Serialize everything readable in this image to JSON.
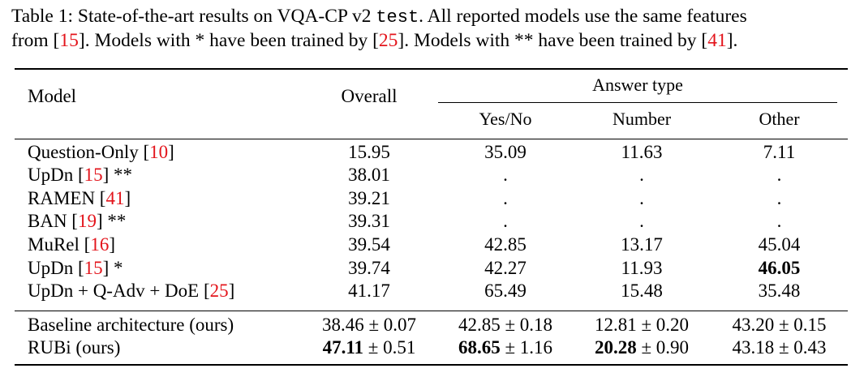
{
  "caption": {
    "line1_a": "Table 1: State-of-the-art results on VQA-CP v2 ",
    "line1_code": "test",
    "line1_b": ". All reported models use the same features",
    "line2_a": "from [",
    "line2_ref1": "15",
    "line2_b": "]. Models with * have been trained by [",
    "line2_ref2": "25",
    "line2_c": "]. Models with ** have been trained by [",
    "line2_ref3": "41",
    "line2_d": "]."
  },
  "header": {
    "model": "Model",
    "overall": "Overall",
    "answer_type": "Answer type",
    "yes_no": "Yes/No",
    "number": "Number",
    "other": "Other"
  },
  "rows": [
    {
      "name": "Question-Only [",
      "ref": "10",
      "suffix": "]",
      "overall": "15.95",
      "yes_no": "35.09",
      "number": "11.63",
      "other": "7.11"
    },
    {
      "name": "UpDn [",
      "ref": "15",
      "suffix": "] **",
      "overall": "38.01",
      "yes_no": ".",
      "number": ".",
      "other": "."
    },
    {
      "name": "RAMEN [",
      "ref": "41",
      "suffix": "]",
      "overall": "39.21",
      "yes_no": ".",
      "number": ".",
      "other": "."
    },
    {
      "name": "BAN [",
      "ref": "19",
      "suffix": "] **",
      "overall": "39.31",
      "yes_no": ".",
      "number": ".",
      "other": "."
    },
    {
      "name": "MuRel [",
      "ref": "16",
      "suffix": "]",
      "overall": "39.54",
      "yes_no": "42.85",
      "number": "13.17",
      "other": "45.04"
    },
    {
      "name": "UpDn [",
      "ref": "15",
      "suffix": "] *",
      "overall": "39.74",
      "yes_no": "42.27",
      "number": "11.93",
      "other": "46.05"
    },
    {
      "name": "UpDn + Q-Adv + DoE [",
      "ref": "25",
      "suffix": "]",
      "overall": "41.17",
      "yes_no": "65.49",
      "number": "15.48",
      "other": "35.48"
    }
  ],
  "ours": [
    {
      "name": "Baseline architecture (ours)",
      "overall_v": "38.46",
      "overall_s": " ± 0.07",
      "yes_no_v": "42.85",
      "yes_no_s": " ± 0.18",
      "number_v": "12.81",
      "number_s": " ± 0.20",
      "other_v": "43.20",
      "other_s": " ± 0.15"
    },
    {
      "name": "RUBi (ours)",
      "overall_v": "47.11",
      "overall_s": " ± 0.51",
      "yes_no_v": "68.65",
      "yes_no_s": " ± 1.16",
      "number_v": "20.28",
      "number_s": " ± 0.90",
      "other_v": "43.18",
      "other_s": " ± 0.43"
    }
  ],
  "colors": {
    "reference": "#e3141b",
    "text": "#000000"
  }
}
